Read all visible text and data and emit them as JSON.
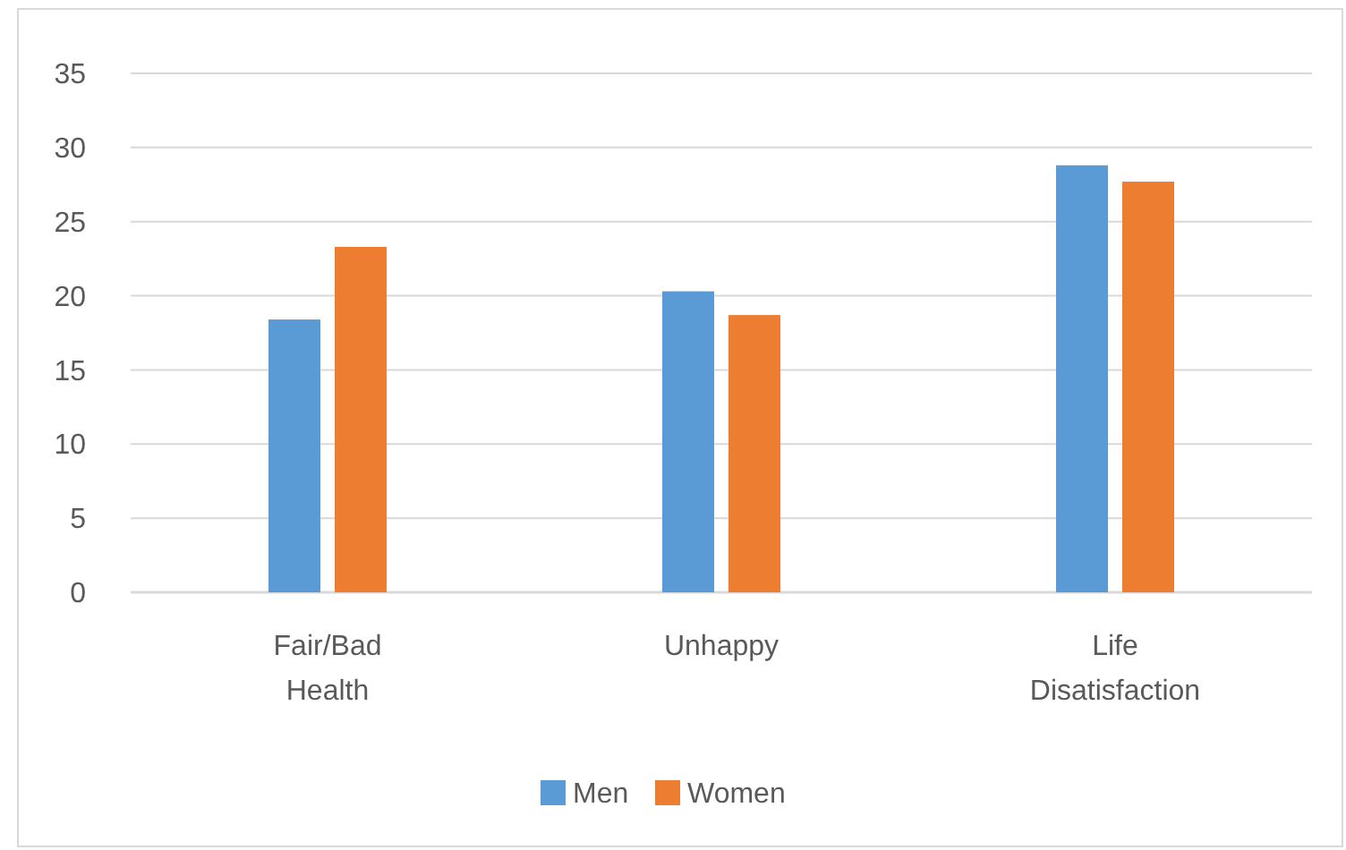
{
  "chart_data": {
    "type": "bar",
    "categories": [
      "Fair/Bad Health",
      "Unhappy",
      "Life Disatisfaction"
    ],
    "series": [
      {
        "name": "Men",
        "color": "#5b9bd5",
        "values": [
          18.4,
          20.3,
          28.8
        ]
      },
      {
        "name": "Women",
        "color": "#ed7d31",
        "values": [
          23.3,
          18.7,
          27.7
        ]
      }
    ],
    "ylim": [
      0,
      35
    ],
    "yticks": [
      0,
      5,
      10,
      15,
      20,
      25,
      30,
      35
    ],
    "grid": "y",
    "legend": "bottom"
  }
}
